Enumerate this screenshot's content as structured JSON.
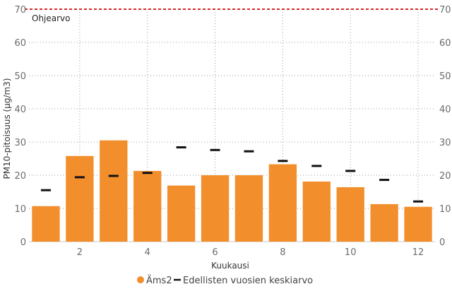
{
  "chart_data": {
    "type": "bar",
    "xlabel": "Kuukausi",
    "ylabel": "PM10-pitoisuus (µg/m3)",
    "ylim": [
      0,
      70
    ],
    "yticks": [
      0,
      10,
      20,
      30,
      40,
      50,
      60,
      70
    ],
    "xticks": [
      2,
      4,
      6,
      8,
      10,
      12
    ],
    "categories": [
      1,
      2,
      3,
      4,
      5,
      6,
      7,
      8,
      9,
      10,
      11,
      12
    ],
    "grid": true,
    "legend_position": "bottom",
    "series": [
      {
        "name": "Äms2",
        "kind": "bar",
        "color": "#f28e2b",
        "values": [
          10.7,
          25.8,
          30.5,
          21.3,
          16.9,
          20.0,
          20.0,
          23.3,
          18.1,
          16.4,
          11.3,
          10.5
        ]
      },
      {
        "name": "Edellisten vuosien keskiarvo",
        "kind": "marker",
        "color": "#111111",
        "values": [
          15.5,
          19.4,
          19.8,
          20.7,
          28.4,
          27.6,
          27.2,
          24.3,
          22.8,
          21.3,
          18.6,
          12.1
        ]
      }
    ],
    "reference_line": {
      "label": "Ohjearvo",
      "value": 70,
      "color": "#d62728"
    }
  }
}
